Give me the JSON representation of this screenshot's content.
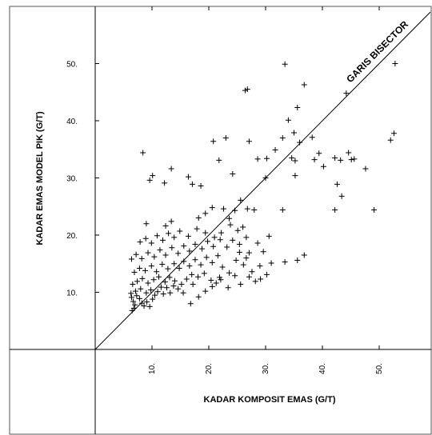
{
  "chart_data": {
    "type": "scatter",
    "xlabel": "KADAR KOMPOSIT EMAS (G/T)",
    "ylabel": "KADAR EMAS MODEL PIK (G/T)",
    "annotation": "GARIS BISECTOR",
    "marker": "plus",
    "xlim": [
      0,
      59
    ],
    "ylim": [
      0,
      59
    ],
    "x_ticks": [
      10,
      20,
      30,
      40,
      50
    ],
    "y_ticks": [
      10,
      20,
      30,
      40,
      50
    ],
    "x_tick_labels": [
      "10.",
      "20.",
      "30.",
      "40.",
      "50."
    ],
    "y_tick_labels": [
      "10.",
      "20.",
      "30.",
      "40.",
      "50."
    ],
    "reference_line": {
      "slope": 1,
      "intercept": 0
    },
    "points": [
      [
        6.5,
        6.8
      ],
      [
        6.8,
        7.2
      ],
      [
        7.0,
        7.8
      ],
      [
        6.7,
        8.4
      ],
      [
        6.4,
        9.1
      ],
      [
        7.3,
        9.4
      ],
      [
        7.8,
        8.9
      ],
      [
        8.2,
        8.1
      ],
      [
        8.6,
        7.6
      ],
      [
        9.1,
        8.3
      ],
      [
        9.6,
        7.5
      ],
      [
        10.1,
        8.8
      ],
      [
        6.3,
        9.8
      ],
      [
        7.1,
        10.2
      ],
      [
        8.0,
        10.6
      ],
      [
        9.0,
        9.9
      ],
      [
        9.8,
        10.4
      ],
      [
        10.5,
        9.5
      ],
      [
        11.0,
        10.1
      ],
      [
        11.6,
        10.9
      ],
      [
        12.0,
        9.7
      ],
      [
        12.6,
        10.8
      ],
      [
        13.2,
        9.9
      ],
      [
        13.8,
        11.1
      ],
      [
        6.6,
        11.4
      ],
      [
        7.4,
        11.9
      ],
      [
        8.3,
        12.4
      ],
      [
        9.3,
        11.6
      ],
      [
        10.3,
        12.2
      ],
      [
        11.2,
        12.7
      ],
      [
        12.3,
        11.8
      ],
      [
        13.1,
        12.6
      ],
      [
        14.0,
        12.0
      ],
      [
        15.2,
        11.4
      ],
      [
        16.1,
        12.3
      ],
      [
        17.0,
        13.1
      ],
      [
        18.1,
        12.7
      ],
      [
        19.2,
        13.3
      ],
      [
        20.4,
        12.1
      ],
      [
        21.3,
        11.6
      ],
      [
        6.9,
        13.5
      ],
      [
        7.8,
        14.2
      ],
      [
        8.8,
        13.8
      ],
      [
        9.9,
        14.6
      ],
      [
        10.8,
        13.6
      ],
      [
        11.8,
        14.9
      ],
      [
        12.8,
        14.1
      ],
      [
        13.9,
        15.0
      ],
      [
        14.8,
        14.2
      ],
      [
        15.6,
        15.4
      ],
      [
        16.6,
        14.6
      ],
      [
        17.6,
        15.7
      ],
      [
        18.6,
        14.8
      ],
      [
        19.6,
        16.1
      ],
      [
        20.6,
        15.2
      ],
      [
        21.6,
        16.4
      ],
      [
        6.4,
        15.8
      ],
      [
        7.2,
        16.6
      ],
      [
        8.2,
        15.9
      ],
      [
        9.3,
        16.9
      ],
      [
        10.4,
        16.2
      ],
      [
        11.4,
        17.4
      ],
      [
        12.4,
        16.5
      ],
      [
        13.5,
        17.8
      ],
      [
        14.6,
        16.8
      ],
      [
        15.6,
        18.1
      ],
      [
        16.6,
        17.2
      ],
      [
        17.6,
        18.4
      ],
      [
        18.8,
        17.6
      ],
      [
        19.8,
        18.9
      ],
      [
        20.8,
        18.0
      ],
      [
        22.0,
        19.2
      ],
      [
        7.9,
        18.8
      ],
      [
        8.9,
        19.4
      ],
      [
        9.9,
        18.6
      ],
      [
        10.9,
        19.9
      ],
      [
        11.9,
        19.1
      ],
      [
        12.9,
        20.3
      ],
      [
        13.9,
        19.6
      ],
      [
        14.9,
        20.7
      ],
      [
        16.4,
        19.8
      ],
      [
        17.9,
        21.1
      ],
      [
        19.4,
        20.4
      ],
      [
        9.0,
        22.0
      ],
      [
        12.4,
        21.6
      ],
      [
        13.4,
        22.4
      ],
      [
        18.2,
        23.0
      ],
      [
        19.4,
        23.8
      ],
      [
        20.6,
        24.8
      ],
      [
        22.6,
        24.6
      ],
      [
        23.6,
        22.9
      ],
      [
        24.6,
        24.3
      ],
      [
        25.6,
        26.1
      ],
      [
        26.8,
        24.6
      ],
      [
        28.0,
        24.4
      ],
      [
        30.0,
        30.0
      ],
      [
        22.4,
        14.4
      ],
      [
        23.6,
        13.4
      ],
      [
        24.8,
        15.6
      ],
      [
        26.1,
        14.8
      ],
      [
        27.1,
        16.9
      ],
      [
        28.6,
        18.6
      ],
      [
        29.6,
        17.1
      ],
      [
        25.4,
        18.4
      ],
      [
        26.6,
        19.6
      ],
      [
        23.2,
        17.9
      ],
      [
        24.2,
        19.1
      ],
      [
        22.2,
        20.4
      ],
      [
        25.1,
        20.8
      ],
      [
        26.0,
        21.4
      ],
      [
        21.0,
        19.6
      ],
      [
        23.8,
        21.8
      ],
      [
        16.8,
        8.0
      ],
      [
        18.2,
        9.2
      ],
      [
        19.4,
        10.2
      ],
      [
        20.6,
        11.0
      ],
      [
        22.1,
        12.2
      ],
      [
        23.4,
        10.8
      ],
      [
        25.6,
        11.4
      ],
      [
        28.2,
        11.9
      ],
      [
        29.1,
        12.3
      ],
      [
        30.2,
        13.1
      ],
      [
        27.1,
        12.7
      ],
      [
        24.6,
        12.9
      ],
      [
        21.9,
        12.6
      ],
      [
        15.5,
        9.9
      ],
      [
        14.6,
        10.6
      ],
      [
        17.2,
        11.4
      ],
      [
        8.4,
        34.4
      ],
      [
        9.6,
        29.6
      ],
      [
        10.1,
        30.4
      ],
      [
        12.2,
        29.1
      ],
      [
        13.4,
        31.6
      ],
      [
        16.4,
        30.2
      ],
      [
        17.1,
        28.9
      ],
      [
        18.6,
        28.6
      ],
      [
        20.8,
        36.4
      ],
      [
        21.8,
        33.1
      ],
      [
        23.0,
        37.0
      ],
      [
        24.2,
        30.7
      ],
      [
        26.4,
        45.3
      ],
      [
        26.8,
        45.5
      ],
      [
        27.1,
        36.4
      ],
      [
        28.6,
        33.3
      ],
      [
        30.2,
        33.4
      ],
      [
        31.7,
        34.9
      ],
      [
        33.0,
        37.0
      ],
      [
        33.4,
        49.9
      ],
      [
        34.0,
        40.1
      ],
      [
        34.6,
        33.5
      ],
      [
        35.0,
        37.9
      ],
      [
        35.2,
        33.0
      ],
      [
        35.6,
        42.3
      ],
      [
        36.0,
        36.2
      ],
      [
        36.8,
        46.3
      ],
      [
        38.2,
        37.1
      ],
      [
        39.4,
        34.3
      ],
      [
        38.6,
        33.2
      ],
      [
        33.0,
        24.4
      ],
      [
        35.2,
        30.4
      ],
      [
        40.2,
        32.0
      ],
      [
        42.2,
        33.5
      ],
      [
        42.6,
        28.9
      ],
      [
        43.2,
        33.1
      ],
      [
        43.4,
        26.8
      ],
      [
        44.6,
        34.4
      ],
      [
        45.1,
        33.2
      ],
      [
        45.6,
        33.3
      ],
      [
        47.6,
        31.6
      ],
      [
        49.1,
        24.4
      ],
      [
        42.2,
        24.4
      ],
      [
        52.0,
        36.6
      ],
      [
        52.6,
        37.8
      ],
      [
        52.8,
        50.0
      ],
      [
        44.2,
        44.8
      ],
      [
        36.8,
        16.5
      ],
      [
        35.6,
        15.6
      ],
      [
        33.4,
        15.3
      ],
      [
        31.0,
        15.1
      ],
      [
        29.0,
        14.6
      ],
      [
        27.6,
        13.6
      ],
      [
        30.6,
        19.8
      ],
      [
        25.4,
        17.0
      ],
      [
        26.6,
        16.0
      ]
    ]
  }
}
